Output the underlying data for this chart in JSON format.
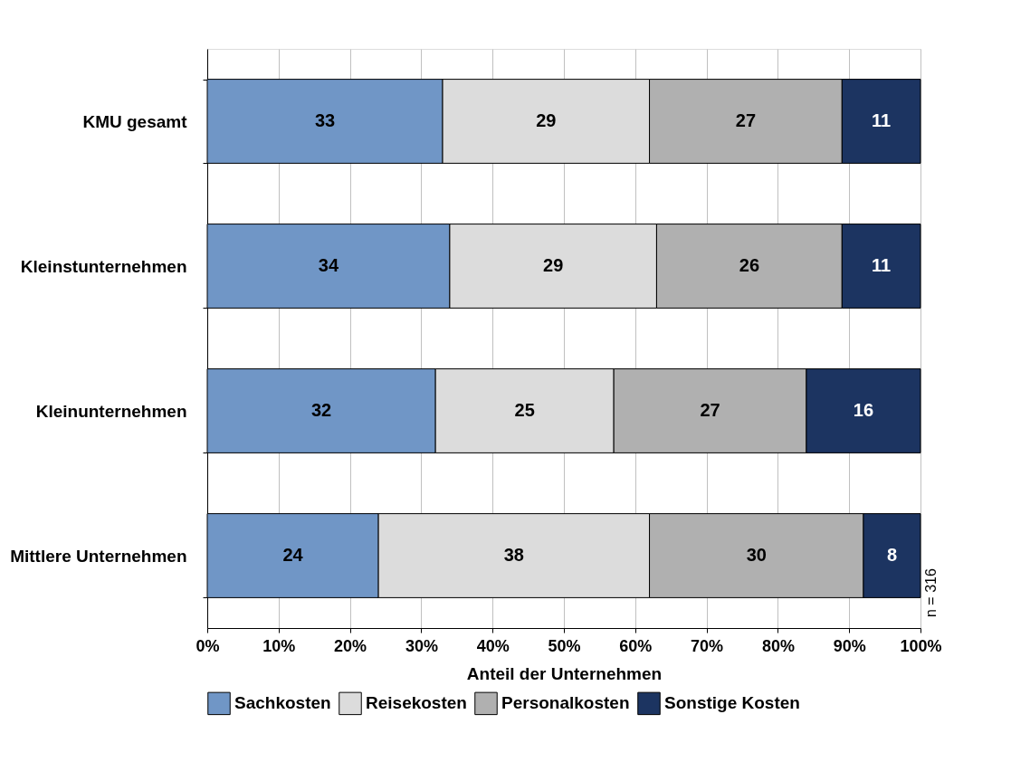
{
  "chart_data": {
    "type": "bar",
    "orientation": "horizontal",
    "stacked": true,
    "xlabel": "Anteil der Unternehmen",
    "categories": [
      "KMU gesamt",
      "Kleinstunternehmen",
      "Kleinunternehmen",
      "Mittlere Unternehmen"
    ],
    "series": [
      {
        "name": "Sachkosten",
        "color": "#7096c6",
        "values": [
          33,
          34,
          32,
          24
        ]
      },
      {
        "name": "Reisekosten",
        "color": "#dcdcdc",
        "values": [
          29,
          29,
          25,
          38
        ]
      },
      {
        "name": "Personalkosten",
        "color": "#b0b0b0",
        "values": [
          27,
          26,
          27,
          30
        ]
      },
      {
        "name": "Sonstige Kosten",
        "color": "#1c3461",
        "values": [
          11,
          11,
          16,
          8
        ]
      }
    ],
    "xlim": [
      0,
      100
    ],
    "xticks": [
      {
        "value": 0,
        "label": "0%"
      },
      {
        "value": 10,
        "label": "10%"
      },
      {
        "value": 20,
        "label": "20%"
      },
      {
        "value": 30,
        "label": "30%"
      },
      {
        "value": 40,
        "label": "40%"
      },
      {
        "value": 50,
        "label": "50%"
      },
      {
        "value": 60,
        "label": "60%"
      },
      {
        "value": 70,
        "label": "70%"
      },
      {
        "value": 80,
        "label": "80%"
      },
      {
        "value": 90,
        "label": "90%"
      },
      {
        "value": 100,
        "label": "100%"
      }
    ],
    "grid": "x",
    "legend": "bottom",
    "data_labels": true,
    "annotations": [
      "n = 316"
    ]
  }
}
